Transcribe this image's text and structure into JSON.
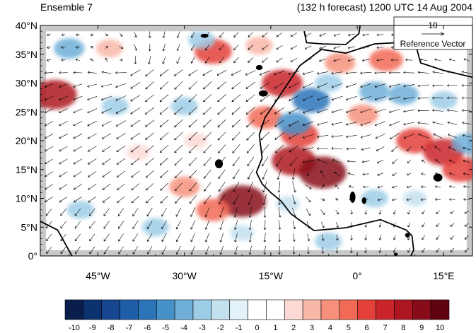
{
  "header": {
    "left_title": "Ensemble 7",
    "right_title": "(132 h forecast) 1200 UTC 14 Aug 2004"
  },
  "map": {
    "region": "Tropical Atlantic and West Africa",
    "lon_range": [
      -55,
      20
    ],
    "lat_range": [
      0,
      40
    ],
    "y_tick_labels": [
      "0°",
      "5°N",
      "10°N",
      "15°N",
      "20°N",
      "25°N",
      "30°N",
      "35°N",
      "40°N"
    ],
    "y_tick_values": [
      0,
      5,
      10,
      15,
      20,
      25,
      30,
      35,
      40
    ],
    "x_tick_labels": [
      "45°W",
      "30°W",
      "15°W",
      "0°",
      "15°E"
    ],
    "x_tick_values": [
      -45,
      -30,
      -15,
      0,
      15
    ],
    "missing_data_color": "#c8c8c8",
    "coastline_color": "#000000",
    "wind_vectors": {
      "arrow_color": "#000000",
      "reference_vector_magnitude": "10",
      "reference_vector_label": "Reference Vector"
    },
    "anomaly_field": [
      {
        "lon": -52.5,
        "lat": 28,
        "value": 8
      },
      {
        "lon": -43,
        "lat": 36,
        "value": 3
      },
      {
        "lon": -25,
        "lat": 35.5,
        "value": 6
      },
      {
        "lon": -17,
        "lat": 36.5,
        "value": 3
      },
      {
        "lon": -13,
        "lat": 30,
        "value": 7
      },
      {
        "lon": -16,
        "lat": 24,
        "value": 5
      },
      {
        "lon": -10,
        "lat": 21,
        "value": 6
      },
      {
        "lon": -11,
        "lat": 16.5,
        "value": 8
      },
      {
        "lon": -6,
        "lat": 14.5,
        "value": 9
      },
      {
        "lon": -20,
        "lat": 9.5,
        "value": 9
      },
      {
        "lon": -25,
        "lat": 8,
        "value": 5
      },
      {
        "lon": -30,
        "lat": 12,
        "value": 4
      },
      {
        "lon": -3,
        "lat": 33.5,
        "value": 4
      },
      {
        "lon": 5,
        "lat": 34,
        "value": 5
      },
      {
        "lon": 10,
        "lat": 20,
        "value": 6
      },
      {
        "lon": 15,
        "lat": 18,
        "value": 7
      },
      {
        "lon": 18,
        "lat": 15,
        "value": 6
      },
      {
        "lon": 1,
        "lat": 24.5,
        "value": 4
      },
      {
        "lon": -38,
        "lat": 18,
        "value": 2
      },
      {
        "lon": -28,
        "lat": 20,
        "value": 2
      },
      {
        "lon": -8,
        "lat": 27,
        "value": -6
      },
      {
        "lon": -11,
        "lat": 23,
        "value": -5
      },
      {
        "lon": -50,
        "lat": 36,
        "value": -4
      },
      {
        "lon": -42,
        "lat": 26,
        "value": -3
      },
      {
        "lon": -30,
        "lat": 26,
        "value": -3
      },
      {
        "lon": -27,
        "lat": 37.5,
        "value": -3
      },
      {
        "lon": -5,
        "lat": 30,
        "value": -3
      },
      {
        "lon": 3,
        "lat": 28.5,
        "value": -4
      },
      {
        "lon": 8,
        "lat": 28,
        "value": -4
      },
      {
        "lon": 15,
        "lat": 27,
        "value": -3
      },
      {
        "lon": 19,
        "lat": 19.5,
        "value": -4
      },
      {
        "lon": -48,
        "lat": 8,
        "value": -3
      },
      {
        "lon": -35,
        "lat": 5,
        "value": -3
      },
      {
        "lon": -5,
        "lat": 2.5,
        "value": -3
      },
      {
        "lon": 3,
        "lat": 10,
        "value": -3
      },
      {
        "lon": 10,
        "lat": 10,
        "value": -2
      },
      {
        "lon": -12,
        "lat": 9,
        "value": -2
      },
      {
        "lon": -20,
        "lat": 4,
        "value": -2
      }
    ]
  },
  "colorbar": {
    "labels": [
      "-10",
      "-9",
      "-8",
      "-7",
      "-6",
      "-5",
      "-4",
      "-3",
      "-2",
      "-1",
      "0",
      "1",
      "2",
      "3",
      "4",
      "5",
      "6",
      "7",
      "8",
      "9",
      "10"
    ],
    "colors": [
      "#0a1e4b",
      "#0d3270",
      "#15468f",
      "#1e5ea8",
      "#2b74b8",
      "#4591c8",
      "#6eaed7",
      "#9dcde6",
      "#c4e1f0",
      "#e3f1f8",
      "#ffffff",
      "#ffffff",
      "#fcd9d5",
      "#f9b7a8",
      "#f6907b",
      "#f16a55",
      "#e3413a",
      "#c92429",
      "#ad1620",
      "#870b18",
      "#600412"
    ]
  }
}
